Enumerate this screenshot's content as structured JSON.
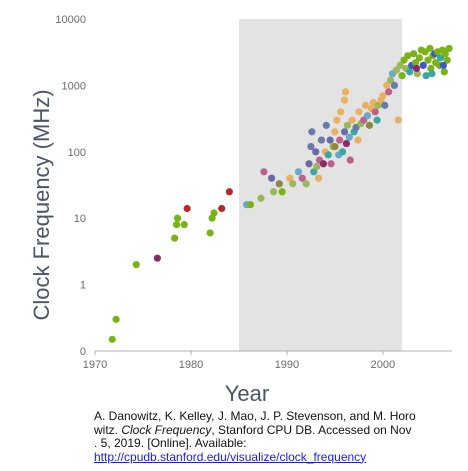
{
  "chart_data": {
    "type": "scatter",
    "title": "",
    "xlabel": "Year",
    "ylabel": "Clock Frequency (MHz)",
    "x_ticks": [
      "1970",
      "1980",
      "1990",
      "2000"
    ],
    "y_ticks": [
      "0",
      "1",
      "10",
      "100",
      "1000",
      "10000"
    ],
    "xlim": [
      1970,
      2007
    ],
    "y_scale": "log",
    "highlight_region": [
      1985,
      2002
    ],
    "grid": false,
    "points": [
      {
        "x": 1971.8,
        "y": 0.15,
        "color": "#7ab317"
      },
      {
        "x": 1972.2,
        "y": 0.3,
        "color": "#7ab317"
      },
      {
        "x": 1974.3,
        "y": 2.0,
        "color": "#7ab317"
      },
      {
        "x": 1976.5,
        "y": 2.5,
        "color": "#8b2a6b"
      },
      {
        "x": 1978.3,
        "y": 5.0,
        "color": "#7ab317"
      },
      {
        "x": 1978.5,
        "y": 8.0,
        "color": "#7ab317"
      },
      {
        "x": 1978.6,
        "y": 10.0,
        "color": "#7ab317"
      },
      {
        "x": 1979.3,
        "y": 8.0,
        "color": "#7ab317"
      },
      {
        "x": 1979.6,
        "y": 14.0,
        "color": "#b52a2a"
      },
      {
        "x": 1982.0,
        "y": 6.0,
        "color": "#7ab317"
      },
      {
        "x": 1982.2,
        "y": 10.0,
        "color": "#7ab317"
      },
      {
        "x": 1982.4,
        "y": 12.0,
        "color": "#7ab317"
      },
      {
        "x": 1983.2,
        "y": 14.0,
        "color": "#b52a2a"
      },
      {
        "x": 1984.0,
        "y": 25.0,
        "color": "#b52a2a"
      },
      {
        "x": 1985.8,
        "y": 16.0,
        "color": "#6aa8c8"
      },
      {
        "x": 1986.2,
        "y": 16.0,
        "color": "#7ab317"
      },
      {
        "x": 1987.3,
        "y": 20.0,
        "color": "#9ab85a"
      },
      {
        "x": 1987.6,
        "y": 50.0,
        "color": "#c0608a"
      },
      {
        "x": 1988.4,
        "y": 40.0,
        "color": "#6a6aa8"
      },
      {
        "x": 1988.6,
        "y": 25.0,
        "color": "#9ab85a"
      },
      {
        "x": 1989.2,
        "y": 33.0,
        "color": "#8a8a3a"
      },
      {
        "x": 1989.5,
        "y": 25.0,
        "color": "#7ab317"
      },
      {
        "x": 1990.3,
        "y": 40.0,
        "color": "#e8b060"
      },
      {
        "x": 1990.6,
        "y": 33.0,
        "color": "#9ab85a"
      },
      {
        "x": 1991.2,
        "y": 50.0,
        "color": "#6aa8c8"
      },
      {
        "x": 1991.6,
        "y": 40.0,
        "color": "#c0608a"
      },
      {
        "x": 1992.0,
        "y": 33.0,
        "color": "#9ab85a"
      },
      {
        "x": 1992.3,
        "y": 66.0,
        "color": "#6a6aa8"
      },
      {
        "x": 1992.5,
        "y": 120.0,
        "color": "#6a7aa8"
      },
      {
        "x": 1992.6,
        "y": 200.0,
        "color": "#6a7aa8"
      },
      {
        "x": 1992.8,
        "y": 50.0,
        "color": "#3aa8a0"
      },
      {
        "x": 1993.0,
        "y": 100.0,
        "color": "#6a6aa8"
      },
      {
        "x": 1993.1,
        "y": 60.0,
        "color": "#9ab85a"
      },
      {
        "x": 1993.3,
        "y": 40.0,
        "color": "#e8b060"
      },
      {
        "x": 1993.4,
        "y": 75.0,
        "color": "#c0608a"
      },
      {
        "x": 1993.6,
        "y": 150.0,
        "color": "#6a7aa8"
      },
      {
        "x": 1993.8,
        "y": 66.0,
        "color": "#8b2a6b"
      },
      {
        "x": 1994.0,
        "y": 100.0,
        "color": "#e8b060"
      },
      {
        "x": 1994.1,
        "y": 250.0,
        "color": "#6a7aa8"
      },
      {
        "x": 1994.3,
        "y": 90.0,
        "color": "#3aa8a0"
      },
      {
        "x": 1994.5,
        "y": 150.0,
        "color": "#6a6aa8"
      },
      {
        "x": 1994.6,
        "y": 66.0,
        "color": "#c0608a"
      },
      {
        "x": 1994.8,
        "y": 120.0,
        "color": "#9ab85a"
      },
      {
        "x": 1995.0,
        "y": 200.0,
        "color": "#e8b060"
      },
      {
        "x": 1995.0,
        "y": 120.0,
        "color": "#8a8a3a"
      },
      {
        "x": 1995.2,
        "y": 300.0,
        "color": "#e8b060"
      },
      {
        "x": 1995.4,
        "y": 90.0,
        "color": "#6aa8c8"
      },
      {
        "x": 1995.5,
        "y": 150.0,
        "color": "#c0608a"
      },
      {
        "x": 1995.6,
        "y": 400.0,
        "color": "#e8b060"
      },
      {
        "x": 1995.8,
        "y": 100.0,
        "color": "#3aa8a0"
      },
      {
        "x": 1996.0,
        "y": 200.0,
        "color": "#6a6aa8"
      },
      {
        "x": 1996.0,
        "y": 600.0,
        "color": "#e8b060"
      },
      {
        "x": 1996.1,
        "y": 800.0,
        "color": "#e8b060"
      },
      {
        "x": 1996.2,
        "y": 133.0,
        "color": "#8b2a6b"
      },
      {
        "x": 1996.3,
        "y": 250.0,
        "color": "#9ab85a"
      },
      {
        "x": 1996.5,
        "y": 166.0,
        "color": "#6aa8c8"
      },
      {
        "x": 1996.6,
        "y": 75.0,
        "color": "#c0608a"
      },
      {
        "x": 1996.8,
        "y": 300.0,
        "color": "#e8b060"
      },
      {
        "x": 1997.0,
        "y": 200.0,
        "color": "#3aa8a0"
      },
      {
        "x": 1997.2,
        "y": 233.0,
        "color": "#6a7aa8"
      },
      {
        "x": 1997.4,
        "y": 150.0,
        "color": "#e8b060"
      },
      {
        "x": 1997.5,
        "y": 400.0,
        "color": "#e8b060"
      },
      {
        "x": 1997.7,
        "y": 266.0,
        "color": "#9ab85a"
      },
      {
        "x": 1998.0,
        "y": 300.0,
        "color": "#c0608a"
      },
      {
        "x": 1998.2,
        "y": 500.0,
        "color": "#e8b060"
      },
      {
        "x": 1998.4,
        "y": 350.0,
        "color": "#6aa8c8"
      },
      {
        "x": 1998.6,
        "y": 250.0,
        "color": "#8a8a3a"
      },
      {
        "x": 1998.8,
        "y": 450.0,
        "color": "#e8b060"
      },
      {
        "x": 1999.0,
        "y": 550.0,
        "color": "#e8b060"
      },
      {
        "x": 1999.2,
        "y": 400.0,
        "color": "#c0608a"
      },
      {
        "x": 1999.4,
        "y": 300.0,
        "color": "#3aa8a0"
      },
      {
        "x": 1999.5,
        "y": 500.0,
        "color": "#9ab85a"
      },
      {
        "x": 1999.8,
        "y": 600.0,
        "color": "#e8b060"
      },
      {
        "x": 2000.0,
        "y": 700.0,
        "color": "#e8b060"
      },
      {
        "x": 2000.2,
        "y": 500.0,
        "color": "#6a7aa8"
      },
      {
        "x": 2000.4,
        "y": 1000.0,
        "color": "#e8b060"
      },
      {
        "x": 2000.6,
        "y": 800.0,
        "color": "#c0608a"
      },
      {
        "x": 2000.8,
        "y": 1200.0,
        "color": "#9ab85a"
      },
      {
        "x": 2001.0,
        "y": 1500.0,
        "color": "#6aa8c8"
      },
      {
        "x": 2001.2,
        "y": 1000.0,
        "color": "#6a7aa8"
      },
      {
        "x": 2001.4,
        "y": 1700.0,
        "color": "#9ab85a"
      },
      {
        "x": 2001.6,
        "y": 300.0,
        "color": "#e8b060"
      },
      {
        "x": 2001.8,
        "y": 2000.0,
        "color": "#9ab85a"
      },
      {
        "x": 2002.0,
        "y": 1400.0,
        "color": "#7ab317"
      },
      {
        "x": 2002.2,
        "y": 2400.0,
        "color": "#7ab317"
      },
      {
        "x": 2002.4,
        "y": 1800.0,
        "color": "#9ab85a"
      },
      {
        "x": 2002.6,
        "y": 2800.0,
        "color": "#7ab317"
      },
      {
        "x": 2002.8,
        "y": 1600.0,
        "color": "#3aa8a0"
      },
      {
        "x": 2003.0,
        "y": 2000.0,
        "color": "#3a5ac8"
      },
      {
        "x": 2003.2,
        "y": 3000.0,
        "color": "#7ab317"
      },
      {
        "x": 2003.4,
        "y": 2200.0,
        "color": "#7ab317"
      },
      {
        "x": 2003.6,
        "y": 1500.0,
        "color": "#9ab85a"
      },
      {
        "x": 2003.8,
        "y": 2600.0,
        "color": "#7ab317"
      },
      {
        "x": 2004.0,
        "y": 3400.0,
        "color": "#7ab317"
      },
      {
        "x": 2004.2,
        "y": 2000.0,
        "color": "#3a5ac8"
      },
      {
        "x": 2004.4,
        "y": 3200.0,
        "color": "#7ab317"
      },
      {
        "x": 2004.5,
        "y": 1400.0,
        "color": "#3aa8a0"
      },
      {
        "x": 2004.7,
        "y": 2400.0,
        "color": "#7ab317"
      },
      {
        "x": 2004.9,
        "y": 3600.0,
        "color": "#7ab317"
      },
      {
        "x": 2005.0,
        "y": 1800.0,
        "color": "#7ab317"
      },
      {
        "x": 2005.2,
        "y": 2800.0,
        "color": "#7ab317"
      },
      {
        "x": 2005.4,
        "y": 3000.0,
        "color": "#3a5ac8"
      },
      {
        "x": 2005.5,
        "y": 2200.0,
        "color": "#7ab317"
      },
      {
        "x": 2005.7,
        "y": 3200.0,
        "color": "#7ab317"
      },
      {
        "x": 2005.9,
        "y": 2000.0,
        "color": "#7ab317"
      },
      {
        "x": 2006.0,
        "y": 2600.0,
        "color": "#3aa8a0"
      },
      {
        "x": 2006.2,
        "y": 3400.0,
        "color": "#7ab317"
      },
      {
        "x": 2006.4,
        "y": 1600.0,
        "color": "#7ab317"
      },
      {
        "x": 2006.5,
        "y": 3000.0,
        "color": "#7ab317"
      },
      {
        "x": 2006.7,
        "y": 2400.0,
        "color": "#7ab317"
      },
      {
        "x": 2006.9,
        "y": 3600.0,
        "color": "#7ab317"
      },
      {
        "x": 2006.3,
        "y": 2000.0,
        "color": "#3a5ac8"
      },
      {
        "x": 2005.1,
        "y": 1500.0,
        "color": "#3aa8a0"
      },
      {
        "x": 2003.5,
        "y": 1800.0,
        "color": "#8b2a6b"
      }
    ],
    "colors": {
      "highlight": "#e3e3e3",
      "axis": "#b0b0b0",
      "tick_text": "#6b6b6b",
      "axis_title": "#4a5666"
    }
  },
  "caption": {
    "line1": "A. Danowitz, K. Kelley, J. Mao, J. P. Stevenson, and M. Horo",
    "line2_pre": "witz. ",
    "line2_em": "Clock Frequency",
    "line2_post": ", Stanford CPU DB. Accessed on  Nov",
    "line3": ". 5, 2019. [Online]. Available:",
    "link": "http://cpudb.stanford.edu/visualize/clock_frequency"
  }
}
